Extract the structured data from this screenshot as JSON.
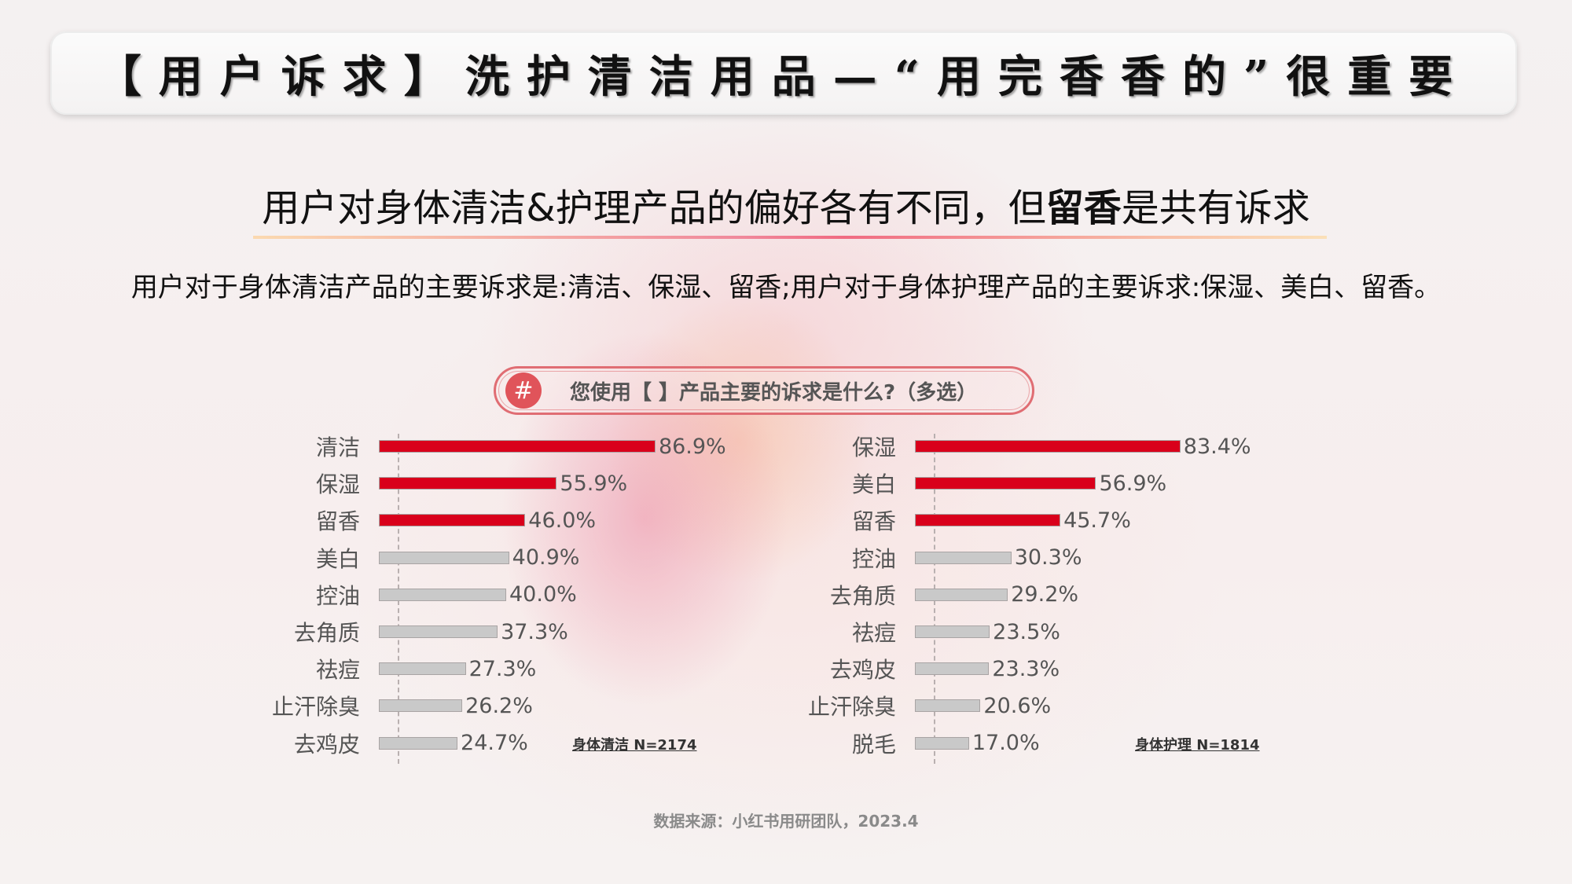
{
  "page": {
    "title": "【用户诉求】洗护清洁用品—“用完香香的”很重要",
    "headline_pre": "用户对身体清洁&护理产品的偏好各有不同，但",
    "headline_bold": "留香",
    "headline_post": "是共有诉求",
    "summary": "用户对于身体清洁产品的主要诉求是:清洁、保湿、留香;用户对于身体护理产品的主要诉求:保湿、美白、留香。",
    "question_icon": "#",
    "question": "您使用【 】产品主要的诉求是什么?（多选）",
    "source": "数据来源：小红书用研团队，2023.4"
  },
  "colors": {
    "highlight_bar": "#d9001b",
    "normal_bar": "#c9c9c9",
    "accent_border": "#e06d73"
  },
  "chart_data": [
    {
      "type": "bar",
      "orientation": "horizontal",
      "title": "您使用【 】产品主要的诉求是什么?（多选）",
      "subtitle": "身体清洁 N=2174",
      "categories": [
        "清洁",
        "保湿",
        "留香",
        "美白",
        "控油",
        "去角质",
        "祛痘",
        "止汗除臭",
        "去鸡皮"
      ],
      "values": [
        86.9,
        55.9,
        46.0,
        40.9,
        40.0,
        37.3,
        27.3,
        26.2,
        24.7
      ],
      "labels": [
        "86.9%",
        "55.9%",
        "46.0%",
        "40.9%",
        "40.0%",
        "37.3%",
        "27.3%",
        "26.2%",
        "24.7%"
      ],
      "highlighted": [
        true,
        true,
        true,
        false,
        false,
        false,
        false,
        false,
        false
      ],
      "unit": "%",
      "xlabel": "",
      "ylabel": "",
      "grid": false,
      "note": "身体清洁 N=2174"
    },
    {
      "type": "bar",
      "orientation": "horizontal",
      "title": "您使用【 】产品主要的诉求是什么?（多选）",
      "subtitle": "身体护理 N=1814",
      "categories": [
        "保湿",
        "美白",
        "留香",
        "控油",
        "去角质",
        "祛痘",
        "去鸡皮",
        "止汗除臭",
        "脱毛"
      ],
      "values": [
        83.4,
        56.9,
        45.7,
        30.3,
        29.2,
        23.5,
        23.3,
        20.6,
        17.0
      ],
      "labels": [
        "83.4%",
        "56.9%",
        "45.7%",
        "30.3%",
        "29.2%",
        "23.5%",
        "23.3%",
        "20.6%",
        "17.0%"
      ],
      "highlighted": [
        true,
        true,
        true,
        false,
        false,
        false,
        false,
        false,
        false
      ],
      "unit": "%",
      "xlabel": "",
      "ylabel": "",
      "grid": false,
      "note": "身体护理 N=1814"
    }
  ]
}
